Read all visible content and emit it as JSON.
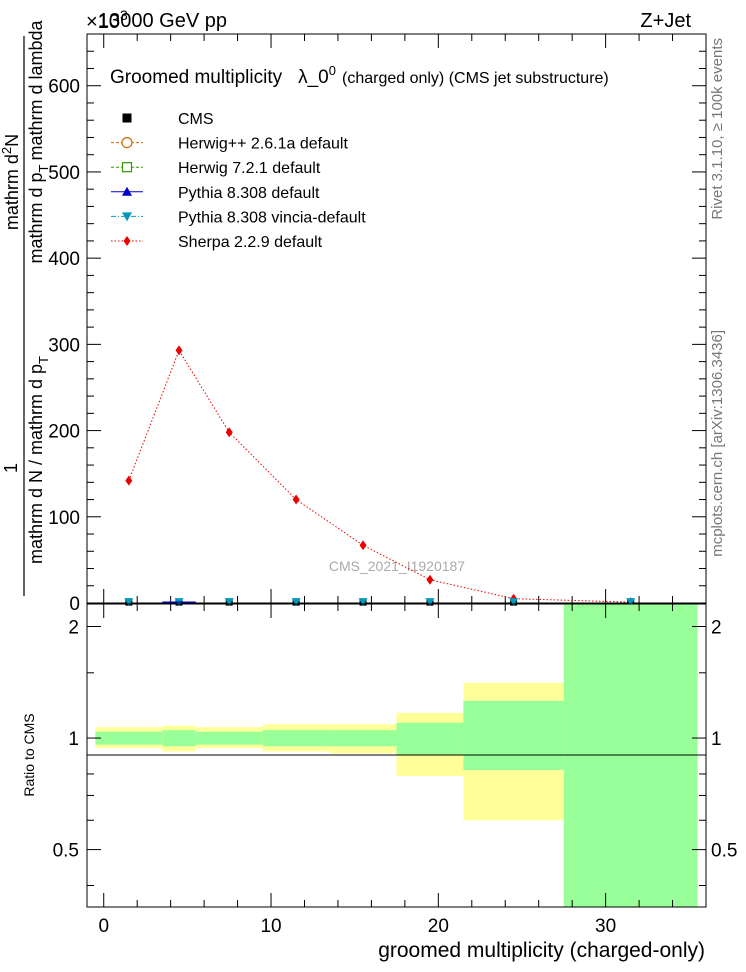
{
  "header": {
    "beam": "13000 GeV pp",
    "process": "Z+Jet",
    "exponent": "×10",
    "exponent_power": "3",
    "side_top": "Rivet 3.1.10, ≥ 100k events",
    "side_bottom": "mcplots.cern.ch [arXiv:1306.3436]",
    "watermark": "CMS_2021_I1920187"
  },
  "chart_data": [
    {
      "type": "line",
      "title": "Groomed multiplicity",
      "title_symbol": "λ_0",
      "title_power": "0",
      "title_suffix": "(charged only) (CMS jet substructure)",
      "ylabel": "1 / mathrm d N / mathrm d p_T · mathrm d²N / mathrm d p_T mathrm d lambda",
      "ylabel_parts": {
        "one": "1",
        "den": "mathrm d N / mathrm d p",
        "den_sub": "T",
        "num_top": "mathrm d",
        "num_sup": "2",
        "num_top2": "N",
        "num_line2": "mathrm d p",
        "num_line2_sub": "T",
        "num_line2_tail": "mathrm d lambda"
      },
      "xlim": [
        -1,
        36
      ],
      "ylim": [
        0,
        660
      ],
      "yticks": [
        0,
        100,
        200,
        300,
        400,
        500,
        600
      ],
      "legend_position": "top-left",
      "legend": [
        {
          "label": "CMS",
          "color": "#000000",
          "marker": "square-filled",
          "line": "none"
        },
        {
          "label": "Herwig++ 2.6.1a default",
          "color": "#cc6600",
          "marker": "circle-open",
          "line": "dashed"
        },
        {
          "label": "Herwig 7.2.1 default",
          "color": "#339900",
          "marker": "square-open",
          "line": "dashed"
        },
        {
          "label": "Pythia 8.308 default",
          "color": "#0000cc",
          "marker": "triangle-up",
          "line": "solid"
        },
        {
          "label": "Pythia 8.308 vincia-default",
          "color": "#0099bb",
          "marker": "triangle-down",
          "line": "dashdot"
        },
        {
          "label": "Sherpa 2.2.9 default",
          "color": "#ee0000",
          "marker": "diamond",
          "line": "dotted"
        }
      ],
      "series": [
        {
          "name": "Sherpa 2.2.9 default",
          "x": [
            1.5,
            4.5,
            7.5,
            11.5,
            15.5,
            19.5,
            24.5,
            31.5
          ],
          "values": [
            142,
            293,
            198,
            120,
            67,
            27,
            5,
            1
          ]
        },
        {
          "name": "CMS",
          "x": [
            1.5,
            4.5,
            7.5,
            11.5,
            15.5,
            19.5,
            24.5,
            31.5
          ],
          "values": [
            1,
            1,
            1,
            1,
            1,
            1,
            1,
            1
          ]
        },
        {
          "name": "Pythia 8.308 vincia-default",
          "x": [
            1.5,
            4.5,
            7.5,
            11.5,
            15.5,
            19.5,
            24.5,
            31.5
          ],
          "values": [
            1,
            1,
            1,
            1,
            1,
            1,
            1,
            1
          ]
        }
      ]
    },
    {
      "type": "area",
      "ylabel": "Ratio to CMS",
      "xlabel": "groomed multiplicity (charged-only)",
      "xlim": [
        -1,
        36
      ],
      "ylim": [
        0.35,
        2.3
      ],
      "xticks": [
        0,
        10,
        20,
        30
      ],
      "yticks": [
        0.5,
        1,
        2
      ],
      "bands": [
        {
          "x0": -0.5,
          "x1": 3.5,
          "yellow": [
            0.94,
            1.07
          ],
          "green": [
            0.96,
            1.04
          ]
        },
        {
          "x0": 3.5,
          "x1": 5.5,
          "yellow": [
            0.92,
            1.08
          ],
          "green": [
            0.95,
            1.05
          ]
        },
        {
          "x0": 5.5,
          "x1": 9.5,
          "yellow": [
            0.94,
            1.07
          ],
          "green": [
            0.96,
            1.04
          ]
        },
        {
          "x0": 9.5,
          "x1": 13.5,
          "yellow": [
            0.92,
            1.09
          ],
          "green": [
            0.95,
            1.05
          ]
        },
        {
          "x0": 13.5,
          "x1": 17.5,
          "yellow": [
            0.91,
            1.09
          ],
          "green": [
            0.95,
            1.05
          ]
        },
        {
          "x0": 17.5,
          "x1": 21.5,
          "yellow": [
            0.79,
            1.17
          ],
          "green": [
            0.9,
            1.1
          ]
        },
        {
          "x0": 21.5,
          "x1": 27.5,
          "yellow": [
            0.6,
            1.41
          ],
          "green": [
            0.82,
            1.26
          ]
        },
        {
          "x0": 27.5,
          "x1": 35.5,
          "yellow": [
            0.3,
            2.4
          ],
          "green": [
            0.3,
            2.4
          ]
        }
      ]
    }
  ]
}
